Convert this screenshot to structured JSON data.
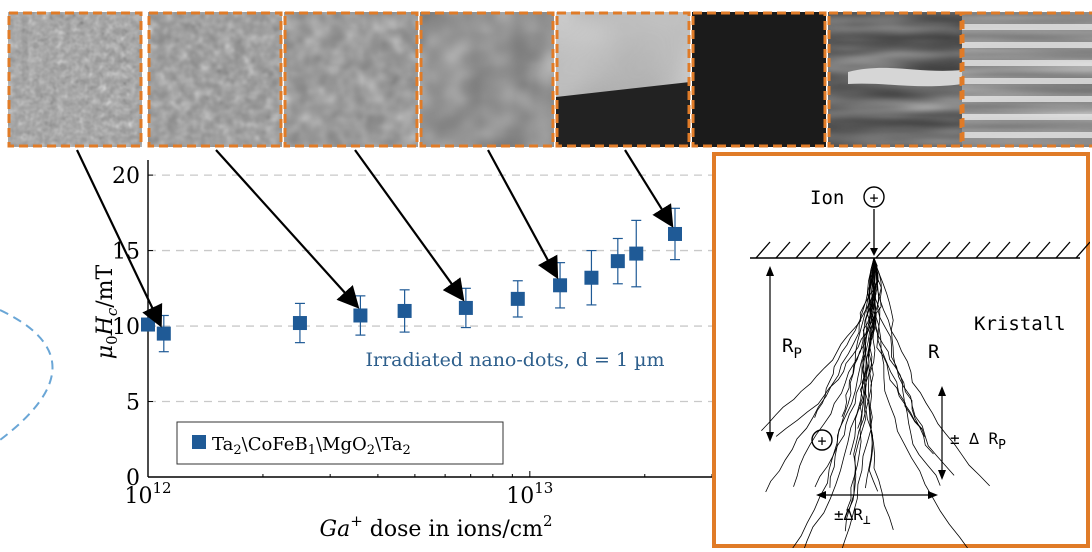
{
  "chart_data": {
    "type": "scatter",
    "x_scale": "log",
    "xlim": [
      "10^12",
      "3e13"
    ],
    "ylim": [
      0,
      21
    ],
    "x_ticks": [
      {
        "value": 1000000000000.0,
        "base": "10",
        "exp": "12"
      },
      {
        "value": 10000000000000.0,
        "base": "10",
        "exp": "13"
      }
    ],
    "y_ticks": [
      0,
      5,
      10,
      15,
      20
    ],
    "ylabel": {
      "main": "μ",
      "sub0": "0",
      "mid": "H",
      "sub1": "c",
      "unit": "/mT"
    },
    "xlabel": {
      "ion": "Ga",
      "charge": "+",
      "text": " dose in ions/cm",
      "pow": "2"
    },
    "grid": "horizontal dashed",
    "annotation": "Irradiated nano-dots, d = 1 µm",
    "series": [
      {
        "name": "Ta2\\CoFeB1\\MgO2\\Ta2",
        "color": "#1f5a96",
        "points": [
          {
            "x": 1000000000000.0,
            "y": 10.1,
            "err": 0.0
          },
          {
            "x": 1100000000000.0,
            "y": 9.5,
            "err": 1.2
          },
          {
            "x": 2500000000000.0,
            "y": 10.2,
            "err": 1.3
          },
          {
            "x": 3600000000000.0,
            "y": 10.7,
            "err": 1.3
          },
          {
            "x": 4700000000000.0,
            "y": 11.0,
            "err": 1.4
          },
          {
            "x": 6800000000000.0,
            "y": 11.2,
            "err": 1.3
          },
          {
            "x": 9300000000000.0,
            "y": 11.8,
            "err": 1.2
          },
          {
            "x": 12000000000000.0,
            "y": 12.7,
            "err": 1.5
          },
          {
            "x": 14500000000000.0,
            "y": 13.2,
            "err": 1.8
          },
          {
            "x": 17000000000000.0,
            "y": 14.3,
            "err": 1.5
          },
          {
            "x": 19000000000000.0,
            "y": 14.8,
            "err": 2.2
          },
          {
            "x": 24000000000000.0,
            "y": 16.1,
            "err": 1.7
          }
        ]
      }
    ],
    "legend": {
      "placement": "bottom-left",
      "label": {
        "a": "Ta",
        "a_sub": "2",
        "b": "\\CoFeB",
        "b_sub": "1",
        "c": "\\MgO",
        "c_sub": "2",
        "d": "\\Ta",
        "d_sub": "2"
      }
    }
  },
  "micrographs": {
    "count": 8,
    "border_color": "#e07b27",
    "arrow_targets": [
      {
        "panel": 0,
        "x": 1100000000000.0,
        "y": 9.5
      },
      {
        "panel": 1,
        "x": 3600000000000.0,
        "y": 10.7
      },
      {
        "panel": 2,
        "x": 6800000000000.0,
        "y": 11.2
      },
      {
        "panel": 3,
        "x": 12000000000000.0,
        "y": 12.7
      },
      {
        "panel": 4,
        "x": 24000000000000.0,
        "y": 16.1
      }
    ]
  },
  "inset": {
    "border_color": "#e07b27",
    "ion": "Ion",
    "crystal": "Kristall",
    "rp_main": "R",
    "rp_sub": "P",
    "r": "R",
    "drp_main": "± ∆ R",
    "drp_sub": "P",
    "drt_main": "±∆R",
    "drt_sub": "⊥",
    "plus": "+"
  }
}
